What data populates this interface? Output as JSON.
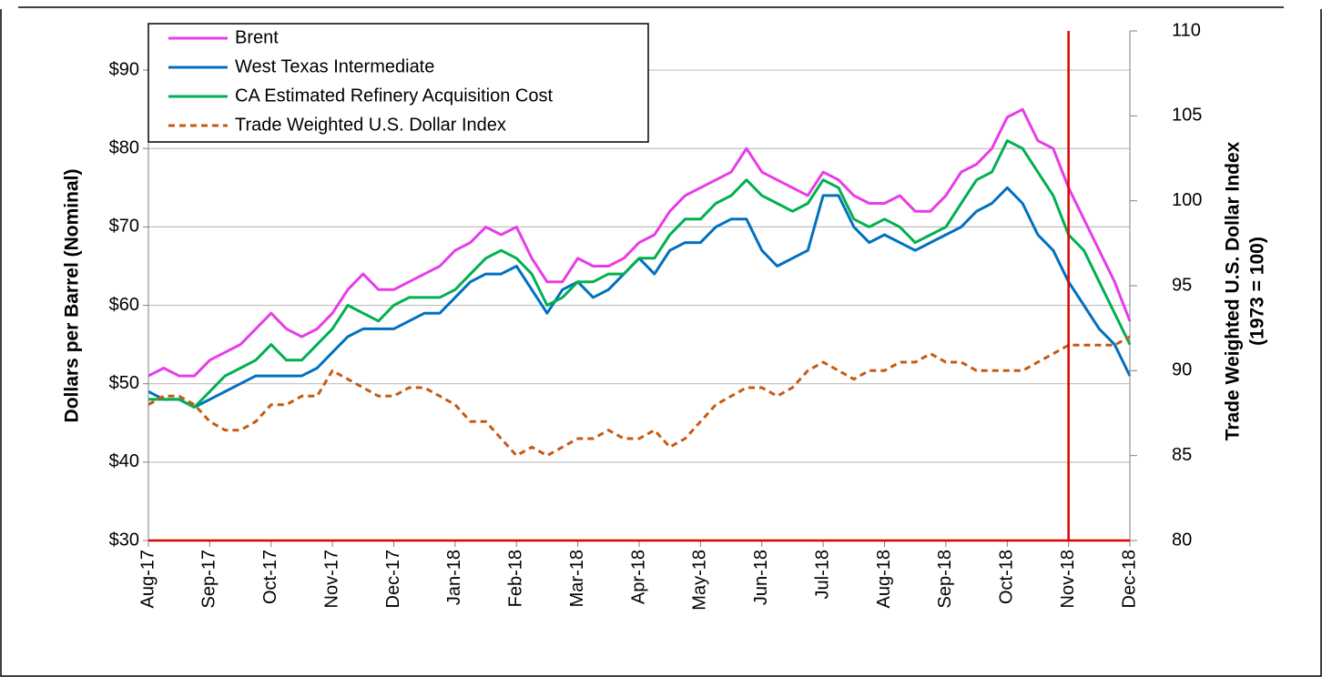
{
  "chart_data": {
    "type": "line",
    "y_label": "Dollars per Barrel (Nominal)",
    "y2_label": [
      "Trade Weighted U.S. Dollar Index",
      "(1973 = 100)"
    ],
    "x": [
      0,
      0.25,
      0.5,
      0.75,
      1,
      1.25,
      1.5,
      1.75,
      2,
      2.25,
      2.5,
      2.75,
      3,
      3.25,
      3.5,
      3.75,
      4,
      4.25,
      4.5,
      4.75,
      5,
      5.25,
      5.5,
      5.75,
      6,
      6.25,
      6.5,
      6.75,
      7,
      7.25,
      7.5,
      7.75,
      8,
      8.25,
      8.5,
      8.75,
      9,
      9.25,
      9.5,
      9.75,
      10,
      10.25,
      10.5,
      10.75,
      11,
      11.25,
      11.5,
      11.75,
      12,
      12.25,
      12.5,
      12.75,
      13,
      13.25,
      13.5,
      13.75,
      14,
      14.25,
      14.5,
      14.75,
      15,
      15.25,
      15.5,
      15.75,
      16
    ],
    "xlim": [
      0,
      16
    ],
    "xticks": [
      {
        "value": 0,
        "label": "Aug-17"
      },
      {
        "value": 1,
        "label": "Sep-17"
      },
      {
        "value": 2,
        "label": "Oct-17"
      },
      {
        "value": 3,
        "label": "Nov-17"
      },
      {
        "value": 4,
        "label": "Dec-17"
      },
      {
        "value": 5,
        "label": "Jan-18"
      },
      {
        "value": 6,
        "label": "Feb-18"
      },
      {
        "value": 7,
        "label": "Mar-18"
      },
      {
        "value": 8,
        "label": "Apr-18"
      },
      {
        "value": 9,
        "label": "May-18"
      },
      {
        "value": 10,
        "label": "Jun-18"
      },
      {
        "value": 11,
        "label": "Jul-18"
      },
      {
        "value": 12,
        "label": "Aug-18"
      },
      {
        "value": 13,
        "label": "Sep-18"
      },
      {
        "value": 14,
        "label": "Oct-18"
      },
      {
        "value": 15,
        "label": "Nov-18"
      },
      {
        "value": 16,
        "label": "Dec-18"
      }
    ],
    "ylim": [
      30,
      95
    ],
    "yticks": [
      {
        "value": 30,
        "label": "$30"
      },
      {
        "value": 40,
        "label": "$40"
      },
      {
        "value": 50,
        "label": "$50"
      },
      {
        "value": 60,
        "label": "$60"
      },
      {
        "value": 70,
        "label": "$70"
      },
      {
        "value": 80,
        "label": "$80"
      },
      {
        "value": 90,
        "label": "$90"
      }
    ],
    "y2lim": [
      80,
      110
    ],
    "y2ticks": [
      80,
      85,
      90,
      95,
      100,
      105,
      110
    ],
    "grid": true,
    "vertical_line": {
      "x": 15,
      "color": "#e00000"
    },
    "series": [
      {
        "name": "Brent",
        "color": "#e83ce8",
        "style": "solid",
        "values": [
          51,
          52,
          51,
          51,
          53,
          54,
          55,
          57,
          59,
          57,
          56,
          57,
          59,
          62,
          64,
          62,
          62,
          63,
          64,
          65,
          67,
          68,
          70,
          69,
          70,
          66,
          63,
          63,
          66,
          65,
          65,
          66,
          68,
          69,
          72,
          74,
          75,
          76,
          77,
          80,
          77,
          76,
          75,
          74,
          77,
          76,
          74,
          73,
          73,
          74,
          72,
          72,
          74,
          77,
          78,
          80,
          84,
          85,
          81,
          80,
          75,
          71,
          67,
          63,
          58
        ]
      },
      {
        "name": "West Texas Intermediate",
        "color": "#0070c0",
        "style": "solid",
        "values": [
          49,
          48,
          48,
          47,
          48,
          49,
          50,
          51,
          51,
          51,
          51,
          52,
          54,
          56,
          57,
          57,
          57,
          58,
          59,
          59,
          61,
          63,
          64,
          64,
          65,
          62,
          59,
          62,
          63,
          61,
          62,
          64,
          66,
          64,
          67,
          68,
          68,
          70,
          71,
          71,
          67,
          65,
          66,
          67,
          74,
          74,
          70,
          68,
          69,
          68,
          67,
          68,
          69,
          70,
          72,
          73,
          75,
          73,
          69,
          67,
          63,
          60,
          57,
          55,
          51
        ]
      },
      {
        "name": "CA Estimated Refinery Acquisition Cost",
        "color": "#00b050",
        "style": "solid",
        "values": [
          48,
          48,
          48,
          47,
          49,
          51,
          52,
          53,
          55,
          53,
          53,
          55,
          57,
          60,
          59,
          58,
          60,
          61,
          61,
          61,
          62,
          64,
          66,
          67,
          66,
          64,
          60,
          61,
          63,
          63,
          64,
          64,
          66,
          66,
          69,
          71,
          71,
          73,
          74,
          76,
          74,
          73,
          72,
          73,
          76,
          75,
          71,
          70,
          71,
          70,
          68,
          69,
          70,
          73,
          76,
          77,
          81,
          80,
          77,
          74,
          69,
          67,
          63,
          59,
          55
        ]
      },
      {
        "name": "Trade Weighted U.S. Dollar Index",
        "color": "#c55a11",
        "style": "dashed",
        "axis": "y2",
        "values": [
          88,
          88.5,
          88.5,
          88,
          87,
          86.5,
          86.5,
          87,
          88,
          88,
          88.5,
          88.5,
          90,
          89.5,
          89,
          88.5,
          88.5,
          89,
          89,
          88.5,
          88,
          87,
          87,
          86,
          85,
          85.5,
          85,
          85.5,
          86,
          86,
          86.5,
          86,
          86,
          86.5,
          85.5,
          86,
          87,
          88,
          88.5,
          89,
          89,
          88.5,
          89,
          90,
          90.5,
          90,
          89.5,
          90,
          90,
          90.5,
          90.5,
          91,
          90.5,
          90.5,
          90,
          90,
          90,
          90,
          90.5,
          91,
          91.5,
          91.5,
          91.5,
          91.5,
          92
        ]
      }
    ]
  }
}
